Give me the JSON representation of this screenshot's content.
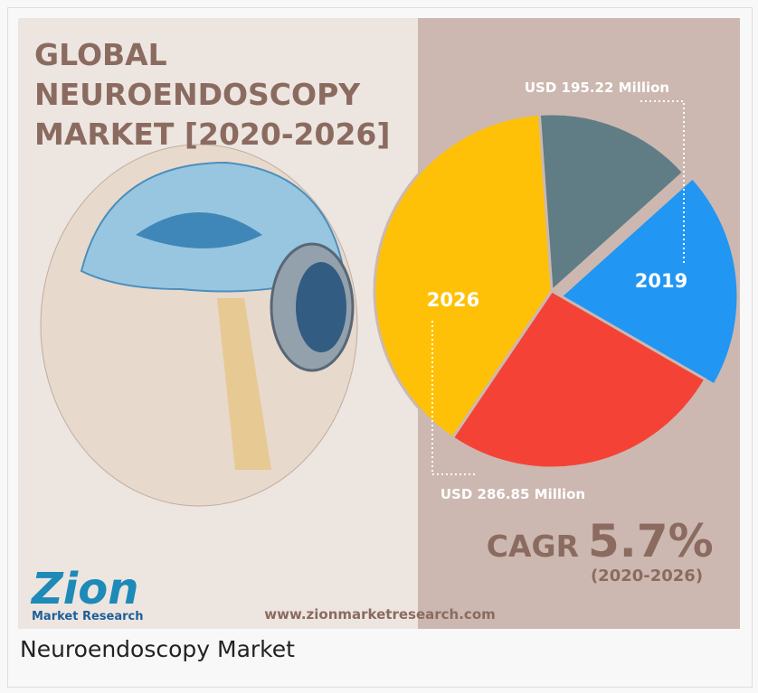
{
  "infographic": {
    "title_lines": [
      "GLOBAL",
      "NEUROENDOSCOPY",
      "MARKET [2020-2026]"
    ],
    "label_2019_value": "USD 195.22 Million",
    "label_2019": "2019",
    "label_2026": "2026",
    "label_2026_value": "USD 286.85 Million",
    "cagr_label": "CAGR",
    "cagr_value": "5.7%",
    "cagr_period": "(2020-2026)",
    "website": "www.zionmarketresearch.com",
    "logo_main": "Zion",
    "logo_sub": "Market Research"
  },
  "caption": "Neuroendoscopy Market"
}
